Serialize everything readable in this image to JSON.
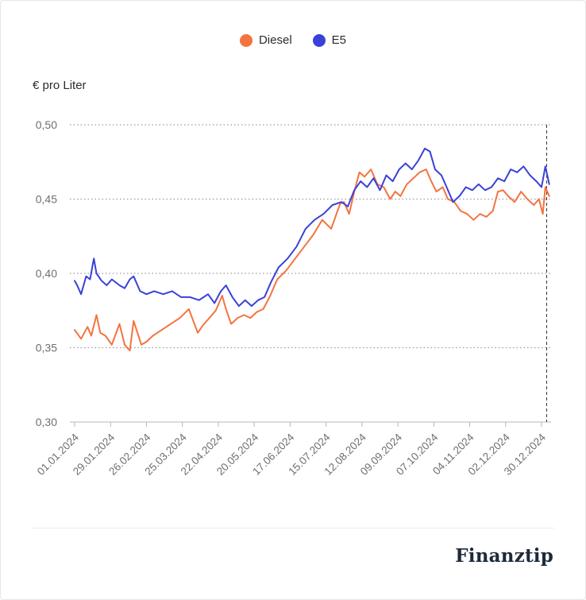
{
  "brand": "Finanztip",
  "unit_label": "€ pro Liter",
  "colors": {
    "diesel": "#f4733f",
    "e5": "#3a41d8",
    "grid": "#9a9a9a",
    "axis": "#8a8a8a"
  },
  "chart_data": {
    "type": "line",
    "ylabel": "€ pro Liter",
    "ylim": [
      0.3,
      0.5
    ],
    "yticks": [
      "0,50",
      "0,45",
      "0,40",
      "0,35",
      "0,30"
    ],
    "ytick_values": [
      0.5,
      0.45,
      0.4,
      0.35,
      0.3
    ],
    "xlim": [
      "01.01.2024",
      "05.01.2025"
    ],
    "xticks": [
      "01.01.2024",
      "29.01.2024",
      "26.02.2024",
      "25.03.2024",
      "22.04.2024",
      "20.05.2024",
      "17.06.2024",
      "15.07.2024",
      "12.08.2024",
      "09.09.2024",
      "07.10.2024",
      "04.11.2024",
      "02.12.2024",
      "30.12.2024"
    ],
    "grid": "horizontal dotted",
    "legend": "top-center",
    "marker_line_date": "03.01.2025",
    "series": [
      {
        "name": "Diesel",
        "color": "#f4733f",
        "x": [
          "01.01.2024",
          "06.01.2024",
          "11.01.2024",
          "14.01.2024",
          "18.01.2024",
          "21.01.2024",
          "25.01.2024",
          "30.01.2024",
          "05.02.2024",
          "09.02.2024",
          "13.02.2024",
          "16.02.2024",
          "22.02.2024",
          "26.02.2024",
          "02.03.2024",
          "09.03.2024",
          "16.03.2024",
          "23.03.2024",
          "30.03.2024",
          "06.04.2024",
          "10.04.2024",
          "15.04.2024",
          "20.04.2024",
          "25.04.2024",
          "28.04.2024",
          "02.05.2024",
          "07.05.2024",
          "12.05.2024",
          "17.05.2024",
          "22.05.2024",
          "27.05.2024",
          "01.06.2024",
          "07.06.2024",
          "14.06.2024",
          "21.06.2024",
          "28.06.2024",
          "05.07.2024",
          "12.07.2024",
          "19.07.2024",
          "26.07.2024",
          "29.07.2024",
          "02.08.2024",
          "06.08.2024",
          "10.08.2024",
          "14.08.2024",
          "19.08.2024",
          "24.08.2024",
          "29.08.2024",
          "03.09.2024",
          "07.09.2024",
          "11.09.2024",
          "16.09.2024",
          "21.09.2024",
          "26.09.2024",
          "01.10.2024",
          "05.10.2024",
          "09.10.2024",
          "14.10.2024",
          "18.10.2024",
          "23.10.2024",
          "28.10.2024",
          "02.11.2024",
          "07.11.2024",
          "12.11.2024",
          "17.11.2024",
          "22.11.2024",
          "26.11.2024",
          "30.11.2024",
          "04.12.2024",
          "09.12.2024",
          "14.12.2024",
          "19.12.2024",
          "24.12.2024",
          "28.12.2024",
          "31.12.2024",
          "02.01.2025",
          "05.01.2025"
        ],
        "y": [
          0.362,
          0.356,
          0.364,
          0.358,
          0.372,
          0.36,
          0.358,
          0.352,
          0.366,
          0.352,
          0.348,
          0.368,
          0.352,
          0.354,
          0.358,
          0.362,
          0.366,
          0.37,
          0.376,
          0.36,
          0.365,
          0.37,
          0.375,
          0.385,
          0.376,
          0.366,
          0.37,
          0.372,
          0.37,
          0.374,
          0.376,
          0.384,
          0.396,
          0.402,
          0.41,
          0.418,
          0.426,
          0.436,
          0.43,
          0.447,
          0.448,
          0.44,
          0.455,
          0.468,
          0.465,
          0.47,
          0.46,
          0.458,
          0.45,
          0.455,
          0.452,
          0.46,
          0.464,
          0.468,
          0.47,
          0.462,
          0.455,
          0.458,
          0.45,
          0.448,
          0.442,
          0.44,
          0.436,
          0.44,
          0.438,
          0.442,
          0.455,
          0.456,
          0.452,
          0.448,
          0.455,
          0.45,
          0.446,
          0.45,
          0.44,
          0.458,
          0.452
        ]
      },
      {
        "name": "E5",
        "color": "#3a41d8",
        "x": [
          "01.01.2024",
          "03.01.2024",
          "06.01.2024",
          "10.01.2024",
          "13.01.2024",
          "16.01.2024",
          "18.01.2024",
          "22.01.2024",
          "26.01.2024",
          "30.01.2024",
          "05.02.2024",
          "09.02.2024",
          "13.02.2024",
          "16.02.2024",
          "21.02.2024",
          "26.02.2024",
          "03.03.2024",
          "10.03.2024",
          "17.03.2024",
          "24.03.2024",
          "31.03.2024",
          "07.04.2024",
          "14.04.2024",
          "19.04.2024",
          "24.04.2024",
          "28.04.2024",
          "03.05.2024",
          "08.05.2024",
          "13.05.2024",
          "18.05.2024",
          "23.05.2024",
          "28.05.2024",
          "02.06.2024",
          "08.06.2024",
          "15.06.2024",
          "22.06.2024",
          "29.06.2024",
          "06.07.2024",
          "13.07.2024",
          "20.07.2024",
          "27.07.2024",
          "01.08.2024",
          "06.08.2024",
          "11.08.2024",
          "16.08.2024",
          "21.08.2024",
          "26.08.2024",
          "31.08.2024",
          "05.09.2024",
          "10.09.2024",
          "15.09.2024",
          "20.09.2024",
          "25.09.2024",
          "30.09.2024",
          "04.10.2024",
          "08.10.2024",
          "13.10.2024",
          "17.10.2024",
          "22.10.2024",
          "27.10.2024",
          "01.11.2024",
          "06.11.2024",
          "11.11.2024",
          "16.11.2024",
          "21.11.2024",
          "26.11.2024",
          "01.12.2024",
          "06.12.2024",
          "11.12.2024",
          "16.12.2024",
          "21.12.2024",
          "26.12.2024",
          "30.12.2024",
          "02.01.2025",
          "05.01.2025"
        ],
        "y": [
          0.395,
          0.392,
          0.386,
          0.398,
          0.396,
          0.41,
          0.4,
          0.395,
          0.392,
          0.396,
          0.392,
          0.39,
          0.396,
          0.398,
          0.388,
          0.386,
          0.388,
          0.386,
          0.388,
          0.384,
          0.384,
          0.382,
          0.386,
          0.38,
          0.388,
          0.392,
          0.384,
          0.378,
          0.382,
          0.378,
          0.382,
          0.384,
          0.394,
          0.404,
          0.41,
          0.418,
          0.43,
          0.436,
          0.44,
          0.446,
          0.448,
          0.445,
          0.456,
          0.462,
          0.458,
          0.464,
          0.456,
          0.466,
          0.462,
          0.47,
          0.474,
          0.47,
          0.476,
          0.484,
          0.482,
          0.47,
          0.466,
          0.458,
          0.448,
          0.452,
          0.458,
          0.456,
          0.46,
          0.456,
          0.458,
          0.464,
          0.462,
          0.47,
          0.468,
          0.472,
          0.466,
          0.462,
          0.458,
          0.472,
          0.46
        ]
      }
    ]
  }
}
